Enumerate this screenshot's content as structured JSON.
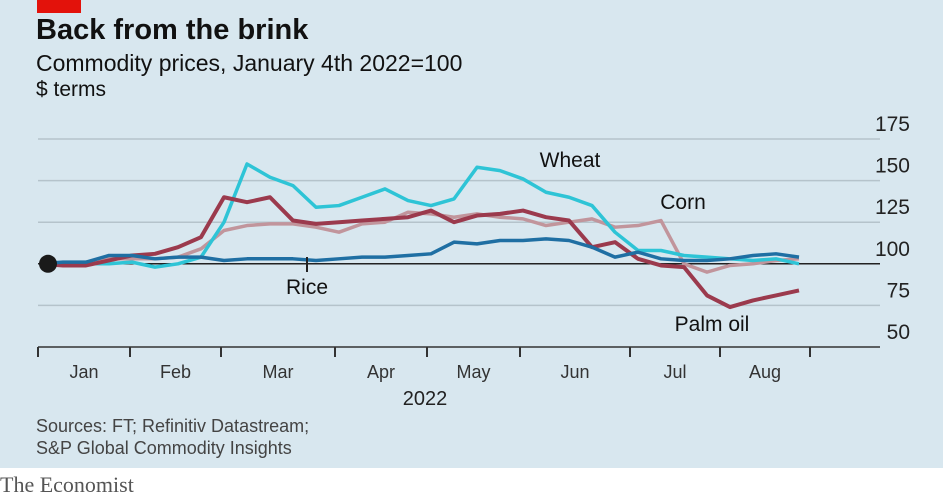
{
  "header": {
    "title": "Back from the brink",
    "subtitle": "Commodity prices, January 4th 2022=100",
    "unit": "$ terms"
  },
  "sources": {
    "line1": "Sources: FT; Refinitiv Datastream;",
    "line2": "S&P Global Commodity Insights"
  },
  "footer": {
    "brand": "The Economist"
  },
  "colors": {
    "background": "#d8e7ef",
    "tag": "#e3120b",
    "Wheat": "#2ec4d6",
    "Corn": "#c1959c",
    "Palm oil": "#9b3a4d",
    "Rice": "#1f6fa3"
  },
  "chart_data": {
    "type": "line",
    "title": "Back from the brink",
    "subtitle": "Commodity prices, January 4th 2022=100",
    "ylabel": "$ terms",
    "xlabel": "2022",
    "x_unit": "weeks since January 4th 2022",
    "x": [
      0,
      1,
      2,
      3,
      4,
      5,
      6,
      7,
      8,
      9,
      10,
      11,
      12,
      13,
      14,
      15,
      16,
      17,
      18,
      19,
      20,
      21,
      22,
      23,
      24,
      25,
      26,
      27,
      28,
      29,
      30,
      31,
      32,
      33
    ],
    "xticks": [
      "Jan",
      "Feb",
      "Mar",
      "Apr",
      "May",
      "Jun",
      "Jul",
      "Aug"
    ],
    "yticks": [
      50,
      75,
      100,
      125,
      150,
      175
    ],
    "ylim": [
      50,
      175
    ],
    "grid": true,
    "series": [
      {
        "name": "Wheat",
        "values": [
          100,
          100,
          100,
          100,
          101,
          98,
          100,
          104,
          125,
          160,
          152,
          147,
          134,
          135,
          140,
          145,
          138,
          135,
          139,
          158,
          156,
          151,
          143,
          140,
          135,
          119,
          108,
          108,
          105,
          104,
          103,
          102,
          103,
          100
        ]
      },
      {
        "name": "Corn",
        "values": [
          100,
          100,
          101,
          103,
          103,
          103,
          104,
          109,
          120,
          123,
          124,
          124,
          122,
          119,
          124,
          125,
          131,
          130,
          128,
          130,
          128,
          127,
          123,
          125,
          127,
          122,
          123,
          126,
          100,
          95,
          99,
          100,
          102,
          103
        ]
      },
      {
        "name": "Palm oil",
        "values": [
          100,
          99,
          99,
          102,
          105,
          106,
          110,
          116,
          140,
          137,
          140,
          126,
          124,
          125,
          126,
          127,
          128,
          132,
          125,
          129,
          130,
          132,
          128,
          126,
          110,
          113,
          103,
          99,
          98,
          81,
          74,
          78,
          81,
          84
        ]
      },
      {
        "name": "Rice",
        "values": [
          100,
          101,
          101,
          105,
          105,
          103,
          104,
          104,
          102,
          103,
          103,
          103,
          102,
          103,
          104,
          104,
          105,
          106,
          113,
          112,
          114,
          114,
          115,
          114,
          110,
          104,
          107,
          103,
          102,
          102,
          103,
          105,
          106,
          104
        ]
      }
    ]
  }
}
